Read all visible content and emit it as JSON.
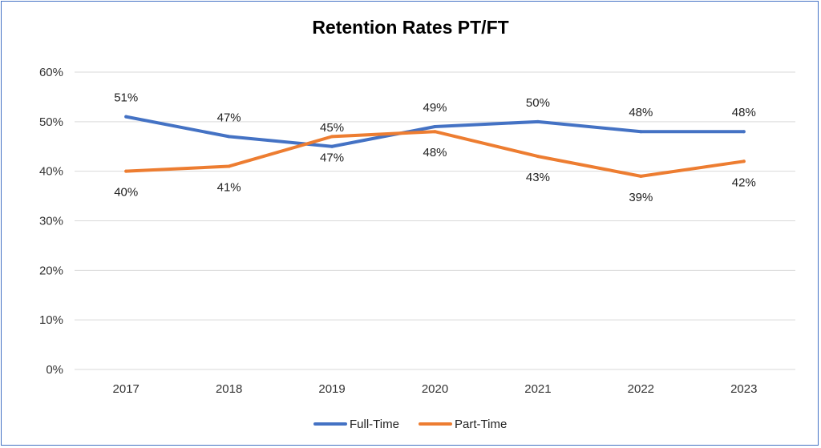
{
  "chart_data": {
    "type": "line",
    "title": "Retention Rates PT/FT",
    "categories": [
      "2017",
      "2018",
      "2019",
      "2020",
      "2021",
      "2022",
      "2023"
    ],
    "ylim": [
      0,
      60
    ],
    "yticks": [
      0,
      10,
      20,
      30,
      40,
      50,
      60
    ],
    "ytick_labels": [
      "0%",
      "10%",
      "20%",
      "30%",
      "40%",
      "50%",
      "60%"
    ],
    "grid": true,
    "legend_position": "bottom",
    "series": [
      {
        "name": "Full-Time",
        "color": "#4472c4",
        "values": [
          51,
          47,
          45,
          49,
          50,
          48,
          48
        ],
        "labels": [
          "51%",
          "47%",
          "45%",
          "49%",
          "50%",
          "48%",
          "48%"
        ],
        "label_side": [
          "above",
          "above",
          "above",
          "above",
          "above",
          "above",
          "above"
        ]
      },
      {
        "name": "Part-Time",
        "color": "#ed7d31",
        "values": [
          40,
          41,
          47,
          48,
          43,
          39,
          42
        ],
        "labels": [
          "40%",
          "41%",
          "47%",
          "48%",
          "43%",
          "39%",
          "42%"
        ],
        "label_side": [
          "below",
          "below",
          "below",
          "below",
          "below",
          "below",
          "below"
        ]
      }
    ]
  }
}
